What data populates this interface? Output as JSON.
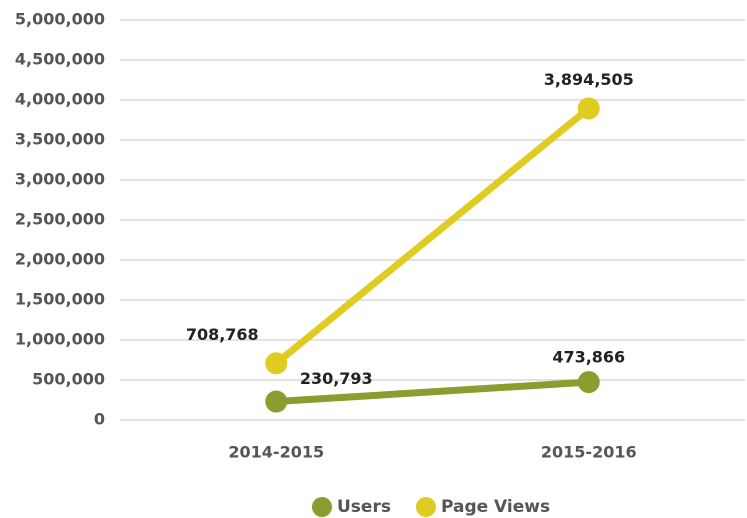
{
  "chart_data": {
    "type": "line",
    "categories": [
      "2014-2015",
      "2015-2016"
    ],
    "series": [
      {
        "name": "Users",
        "color": "#8c9c2e",
        "values": [
          230793,
          473866
        ],
        "value_labels": [
          "230,793",
          "473,866"
        ]
      },
      {
        "name": "Page Views",
        "color": "#e0cb20",
        "values": [
          708768,
          3894505
        ],
        "value_labels": [
          "708,768",
          "3,894,505"
        ]
      }
    ],
    "ylim": [
      0,
      5000000
    ],
    "yticks": [
      {
        "value": 0,
        "label": "0"
      },
      {
        "value": 500000,
        "label": "500,000"
      },
      {
        "value": 1000000,
        "label": "1,000,000"
      },
      {
        "value": 1500000,
        "label": "1,500,000"
      },
      {
        "value": 2000000,
        "label": "2,000,000"
      },
      {
        "value": 2500000,
        "label": "2,500,000"
      },
      {
        "value": 3000000,
        "label": "3,000,000"
      },
      {
        "value": 3500000,
        "label": "3,500,000"
      },
      {
        "value": 4000000,
        "label": "4,000,000"
      },
      {
        "value": 4500000,
        "label": "4,500,000"
      },
      {
        "value": 5000000,
        "label": "5,000,000"
      }
    ],
    "grid": true
  }
}
